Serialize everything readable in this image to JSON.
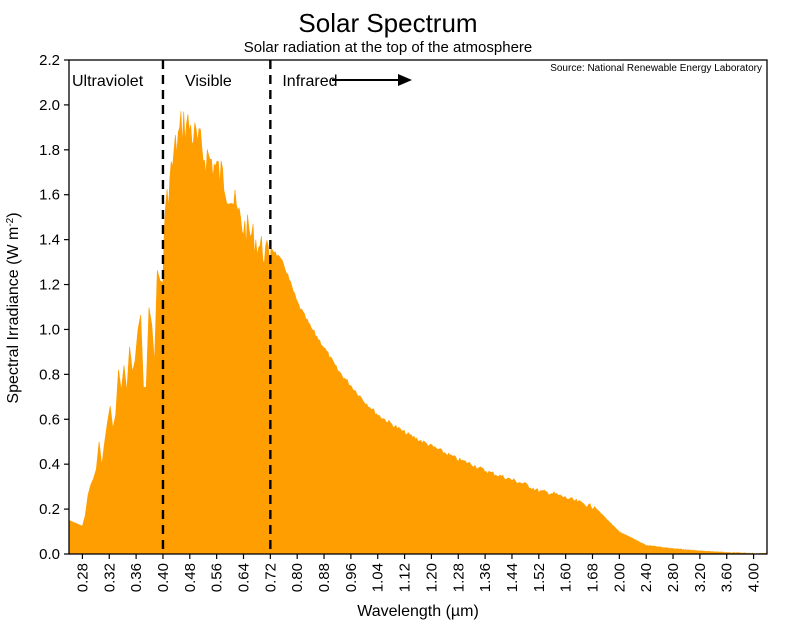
{
  "chart_data": {
    "type": "area",
    "title": "Solar Spectrum",
    "subtitle": "Solar radiation at the top of the atmosphere",
    "source": "Source: National Renewable Energy Laboratory",
    "xlabel": "Wavelength (µm)",
    "ylabel_main": "Spectral Irradiance (W m",
    "ylabel_sup": "-2",
    "ylabel_end": ")",
    "ylim": [
      0,
      2.2
    ],
    "yticks": [
      "0.0",
      "0.2",
      "0.4",
      "0.6",
      "0.8",
      "1.0",
      "1.2",
      "1.4",
      "1.6",
      "1.8",
      "2.0",
      "2.2"
    ],
    "xticks": [
      "0.28",
      "0.32",
      "0.36",
      "0.40",
      "0.48",
      "0.56",
      "0.64",
      "0.72",
      "0.80",
      "0.88",
      "0.96",
      "1.04",
      "1.12",
      "1.20",
      "1.28",
      "1.36",
      "1.44",
      "1.52",
      "1.60",
      "1.68",
      "2.00",
      "2.40",
      "2.80",
      "3.20",
      "3.60",
      "4.00"
    ],
    "grid": false,
    "fill_color": "#FF9E00",
    "regions": [
      {
        "label": "Ultraviolet"
      },
      {
        "label": "Visible"
      },
      {
        "label": "Infrared"
      }
    ],
    "region_boundaries": [
      "0.40",
      "0.72"
    ],
    "series": [
      {
        "x": [
          "0.28",
          "0.30",
          "0.32",
          "0.34",
          "0.36",
          "0.38",
          "0.40",
          "0.42",
          "0.44",
          "0.46",
          "0.48",
          "0.50",
          "0.52",
          "0.54",
          "0.56",
          "0.58",
          "0.60",
          "0.62",
          "0.64",
          "0.66",
          "0.68",
          "0.70",
          "0.72",
          "0.76",
          "0.80",
          "0.84",
          "0.88",
          "0.92",
          "0.96",
          "1.00",
          "1.04",
          "1.08",
          "1.12",
          "1.16",
          "1.20",
          "1.24",
          "1.28",
          "1.32",
          "1.36",
          "1.40",
          "1.44",
          "1.48",
          "1.52",
          "1.56",
          "1.60",
          "1.64",
          "1.68",
          "2.00",
          "2.40",
          "2.80",
          "3.20",
          "3.60",
          "4.00"
        ],
        "values": [
          0.15,
          0.45,
          0.72,
          0.9,
          1.05,
          1.15,
          1.5,
          1.75,
          1.92,
          2.02,
          2.0,
          1.93,
          1.88,
          1.85,
          1.8,
          1.76,
          1.7,
          1.6,
          1.53,
          1.5,
          1.46,
          1.42,
          1.38,
          1.3,
          1.13,
          1.02,
          0.93,
          0.83,
          0.76,
          0.69,
          0.63,
          0.59,
          0.55,
          0.52,
          0.49,
          0.46,
          0.43,
          0.41,
          0.38,
          0.36,
          0.34,
          0.32,
          0.29,
          0.28,
          0.26,
          0.24,
          0.22,
          0.1,
          0.04,
          0.025,
          0.015,
          0.008,
          0.004
        ]
      }
    ]
  }
}
